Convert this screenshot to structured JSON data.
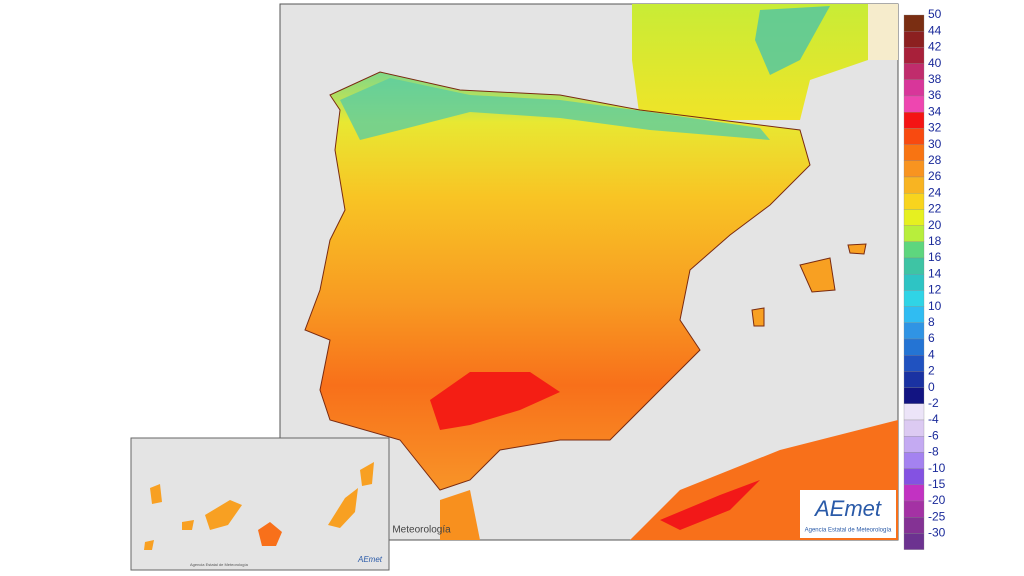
{
  "map": {
    "overlay_text": "e Meteorología",
    "logo": {
      "name": "AEmet",
      "subtitle": "Agencia Estatal de Meteorología"
    },
    "inset": {
      "logo": {
        "name": "AEmet",
        "subtitle": "Agencia Estatal de Meteorología"
      }
    },
    "legend": [
      {
        "label": "50",
        "color": "#7a2e12"
      },
      {
        "label": "44",
        "color": "#8c2020"
      },
      {
        "label": "42",
        "color": "#a8203a"
      },
      {
        "label": "40",
        "color": "#c02c6c"
      },
      {
        "label": "38",
        "color": "#d8369a"
      },
      {
        "label": "36",
        "color": "#ee46b0"
      },
      {
        "label": "34",
        "color": "#f41414"
      },
      {
        "label": "32",
        "color": "#f84a10"
      },
      {
        "label": "30",
        "color": "#f87412"
      },
      {
        "label": "28",
        "color": "#f89420"
      },
      {
        "label": "26",
        "color": "#f8b422"
      },
      {
        "label": "24",
        "color": "#f8d41e"
      },
      {
        "label": "22",
        "color": "#e6f020"
      },
      {
        "label": "20",
        "color": "#b8ee3c"
      },
      {
        "label": "18",
        "color": "#5ed67e"
      },
      {
        "label": "16",
        "color": "#3ec4a4"
      },
      {
        "label": "14",
        "color": "#2ec4c4"
      },
      {
        "label": "12",
        "color": "#30d4e6"
      },
      {
        "label": "10",
        "color": "#30bcf2"
      },
      {
        "label": "8",
        "color": "#3094e4"
      },
      {
        "label": "6",
        "color": "#2474d4"
      },
      {
        "label": "4",
        "color": "#2052c0"
      },
      {
        "label": "2",
        "color": "#1a32a2"
      },
      {
        "label": "0",
        "color": "#121482"
      },
      {
        "label": "-2",
        "color": "#ece4f8"
      },
      {
        "label": "-4",
        "color": "#dccaf2"
      },
      {
        "label": "-6",
        "color": "#c4aaf2"
      },
      {
        "label": "-8",
        "color": "#a482f0"
      },
      {
        "label": "-10",
        "color": "#8452e2"
      },
      {
        "label": "-15",
        "color": "#c232c2"
      },
      {
        "label": "-20",
        "color": "#a432a4"
      },
      {
        "label": "-25",
        "color": "#843294"
      },
      {
        "label": "-30",
        "color": "#6c3290"
      }
    ]
  }
}
